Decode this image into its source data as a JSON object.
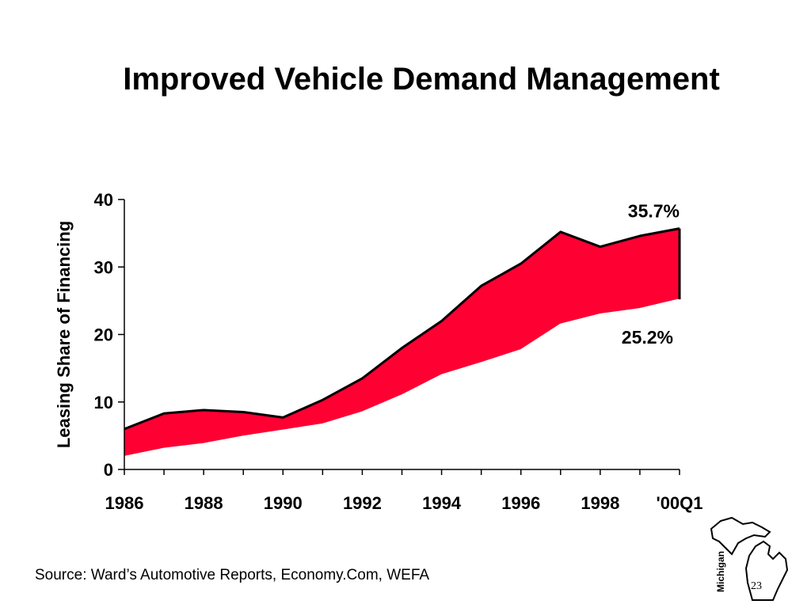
{
  "slide": {
    "title": "Improved Vehicle Demand Management",
    "source": "Source:  Ward’s Automotive Reports, Economy.Com, WEFA",
    "logo_text": "Michigan",
    "page_number": "23"
  },
  "chart_data": {
    "type": "area",
    "title": "",
    "xlabel": "",
    "ylabel": "Leasing Share of Financing",
    "ylim": [
      0,
      40
    ],
    "yticks": [
      0,
      10,
      20,
      30,
      40
    ],
    "x": [
      "1986",
      "1987",
      "1988",
      "1989",
      "1990",
      "1991",
      "1992",
      "1993",
      "1994",
      "1995",
      "1996",
      "1997",
      "1998",
      "1999",
      "'00Q1"
    ],
    "xtick_labels": [
      "1986",
      "1988",
      "1990",
      "1992",
      "1994",
      "1996",
      "1998",
      "'00Q1"
    ],
    "series": [
      {
        "values": [
          6.0,
          8.3,
          8.8,
          8.5,
          7.7,
          10.3,
          13.5,
          18.0,
          22.0,
          27.2,
          30.5,
          35.2,
          33.0,
          34.6,
          35.7
        ]
      },
      {
        "values": [
          1.9,
          3.1,
          3.8,
          4.9,
          5.8,
          6.7,
          8.5,
          11.0,
          14.0,
          15.8,
          17.7,
          21.5,
          23.0,
          23.8,
          25.2
        ]
      }
    ],
    "fill_color": "#ff0033",
    "annotations": [
      "35.7%",
      "25.2%"
    ],
    "grid": false,
    "legend": "none"
  }
}
